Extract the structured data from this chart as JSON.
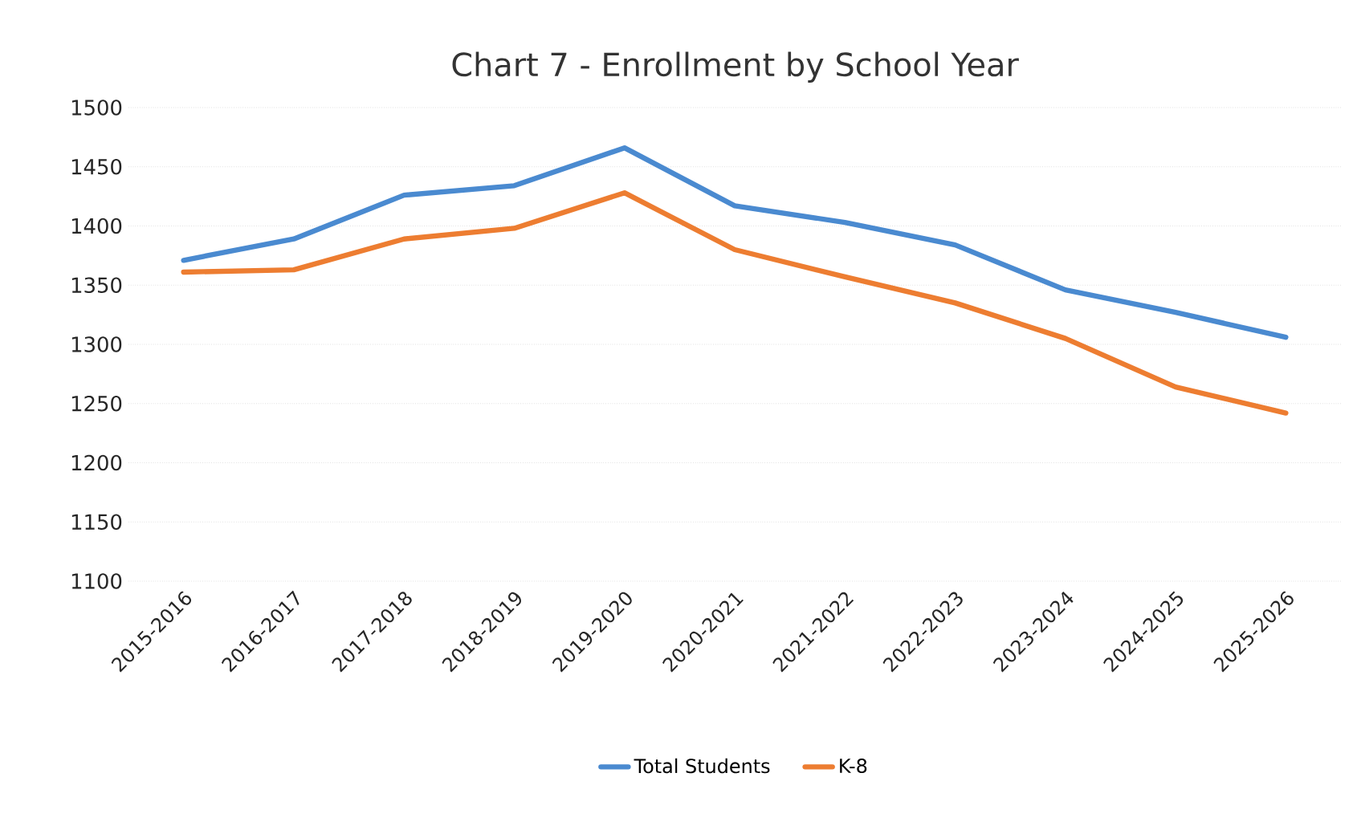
{
  "chart_data": {
    "type": "line",
    "title": "Chart 7 - Enrollment by School Year",
    "categories": [
      "2015-2016",
      "2016-2017",
      "2017-2018",
      "2018-2019",
      "2019-2020",
      "2020-2021",
      "2021-2022",
      "2022-2023",
      "2023-2024",
      "2024-2025",
      "2025-2026"
    ],
    "series": [
      {
        "name": "Total Students",
        "color": "#4a8ad0",
        "values": [
          1371,
          1389,
          1426,
          1434,
          1466,
          1417,
          1403,
          1384,
          1346,
          1327,
          1306
        ]
      },
      {
        "name": "K-8",
        "color": "#ed7d31",
        "values": [
          1361,
          1363,
          1389,
          1398,
          1428,
          1380,
          1357,
          1335,
          1305,
          1264,
          1242
        ]
      }
    ],
    "ylim": [
      1100,
      1500
    ],
    "yticks": [
      1100,
      1150,
      1200,
      1250,
      1300,
      1350,
      1400,
      1450,
      1500
    ],
    "grid": "y",
    "legend": "bottom",
    "marker": "none",
    "line_style": "solid"
  }
}
